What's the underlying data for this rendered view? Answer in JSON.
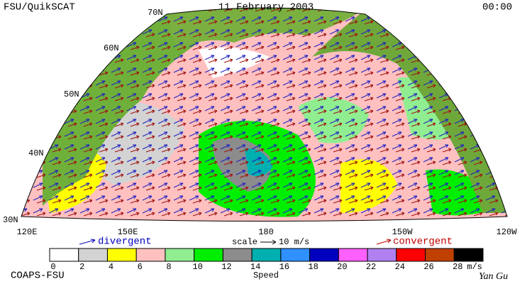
{
  "header": {
    "left": "FSU/QuikSCAT",
    "center": "11 February 2003",
    "right": "00:00"
  },
  "map": {
    "lat_labels": [
      "70N",
      "60N",
      "50N",
      "40N",
      "30N"
    ],
    "lon_labels": [
      "120E",
      "150E",
      "180",
      "150W",
      "120W"
    ]
  },
  "legend": {
    "divergent": "divergent",
    "scale": "scale",
    "scale_value": "10 m/s",
    "convergent": "convergent"
  },
  "colorbar": {
    "title": "Speed",
    "unit": "m/s",
    "ticks": [
      0,
      2,
      4,
      6,
      8,
      10,
      12,
      14,
      16,
      18,
      20,
      22,
      24,
      26,
      28
    ],
    "colors": [
      "#ffffff",
      "#d3d3d3",
      "#ffff00",
      "#ffc0c0",
      "#90ee90",
      "#00ee00",
      "#8c8c8c",
      "#00b0b0",
      "#3090ff",
      "#0000c0",
      "#ff60ff",
      "#b080f0",
      "#ff0000",
      "#c04000",
      "#000000"
    ]
  },
  "footer": {
    "left": "COAPS-FSU",
    "right": "Yan Gu"
  }
}
